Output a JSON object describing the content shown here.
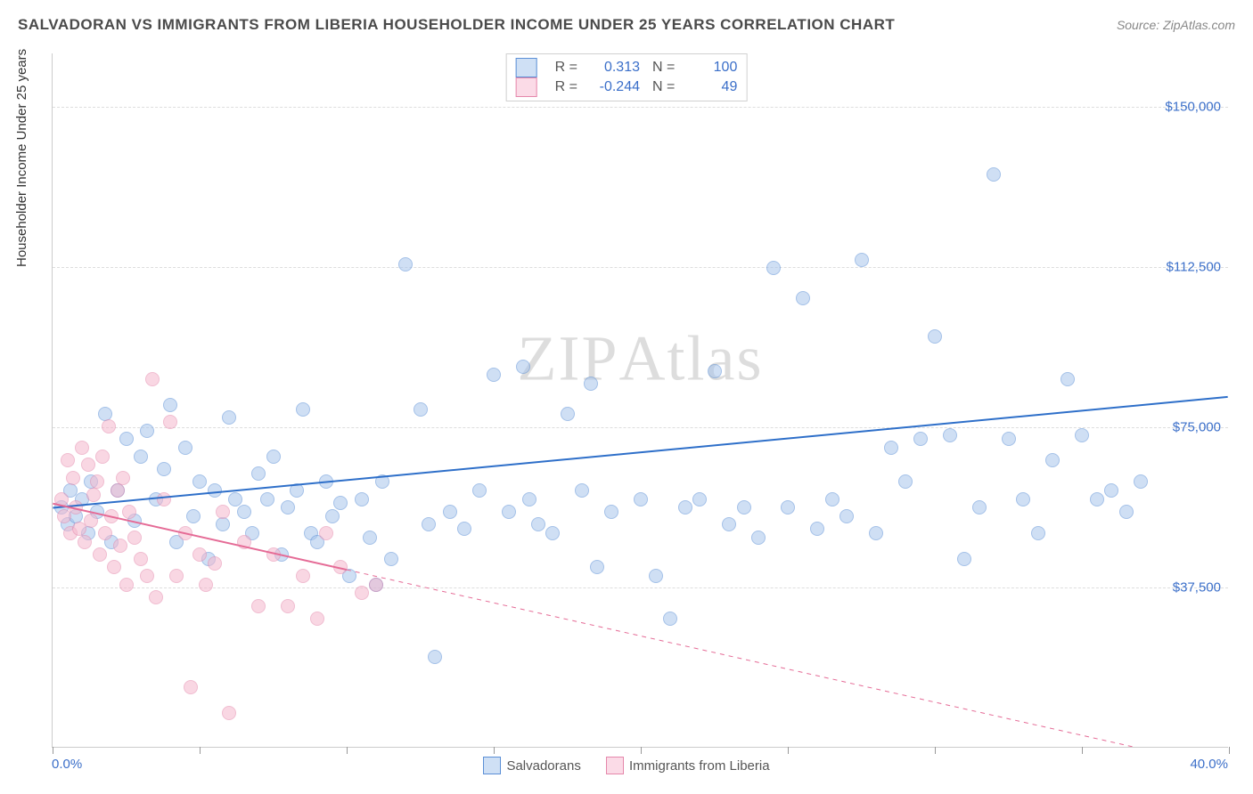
{
  "header": {
    "title": "SALVADORAN VS IMMIGRANTS FROM LIBERIA HOUSEHOLDER INCOME UNDER 25 YEARS CORRELATION CHART",
    "source_label": "Source: ",
    "source_name": "ZipAtlas.com"
  },
  "watermark": "ZIPAtlas",
  "chart": {
    "type": "scatter",
    "ylabel": "Householder Income Under 25 years",
    "xlim": [
      0,
      40
    ],
    "ylim": [
      0,
      162500
    ],
    "xaxis_min_label": "0.0%",
    "xaxis_max_label": "40.0%",
    "xtick_positions": [
      0,
      5,
      10,
      15,
      20,
      25,
      30,
      35,
      40
    ],
    "ytick_positions": [
      37500,
      75000,
      112500,
      150000
    ],
    "ytick_labels": [
      "$37,500",
      "$75,000",
      "$112,500",
      "$150,000"
    ],
    "grid_color": "#dddddd",
    "background_color": "#ffffff",
    "axis_color": "#cccccc",
    "tick_label_color": "#3b6fc9",
    "label_fontsize": 15,
    "title_fontsize": 17,
    "series": [
      {
        "name": "Salvadorans",
        "fill_color": "#a8c5ec",
        "fill_opacity": 0.55,
        "stroke_color": "#5b8fd6",
        "swatch_fill": "#cfe0f5",
        "swatch_border": "#5b8fd6",
        "line_color": "#2e6fc9",
        "line_width": 2,
        "marker_radius": 8,
        "r_value": "0.313",
        "n_value": "100",
        "trend": {
          "x1": 0,
          "y1": 56000,
          "x2": 40,
          "y2": 82000
        },
        "points": [
          [
            0.3,
            56000
          ],
          [
            0.5,
            52000
          ],
          [
            0.6,
            60000
          ],
          [
            0.8,
            54000
          ],
          [
            1.0,
            58000
          ],
          [
            1.2,
            50000
          ],
          [
            1.3,
            62000
          ],
          [
            1.5,
            55000
          ],
          [
            1.8,
            78000
          ],
          [
            2.0,
            48000
          ],
          [
            2.2,
            60000
          ],
          [
            2.5,
            72000
          ],
          [
            2.8,
            53000
          ],
          [
            3.0,
            68000
          ],
          [
            3.2,
            74000
          ],
          [
            3.5,
            58000
          ],
          [
            3.8,
            65000
          ],
          [
            4.0,
            80000
          ],
          [
            4.2,
            48000
          ],
          [
            4.5,
            70000
          ],
          [
            4.8,
            54000
          ],
          [
            5.0,
            62000
          ],
          [
            5.3,
            44000
          ],
          [
            5.5,
            60000
          ],
          [
            5.8,
            52000
          ],
          [
            6.0,
            77000
          ],
          [
            6.2,
            58000
          ],
          [
            6.5,
            55000
          ],
          [
            6.8,
            50000
          ],
          [
            7.0,
            64000
          ],
          [
            7.3,
            58000
          ],
          [
            7.5,
            68000
          ],
          [
            7.8,
            45000
          ],
          [
            8.0,
            56000
          ],
          [
            8.3,
            60000
          ],
          [
            8.5,
            79000
          ],
          [
            8.8,
            50000
          ],
          [
            9.0,
            48000
          ],
          [
            9.3,
            62000
          ],
          [
            9.5,
            54000
          ],
          [
            9.8,
            57000
          ],
          [
            10.1,
            40000
          ],
          [
            10.5,
            58000
          ],
          [
            10.8,
            49000
          ],
          [
            11.0,
            38000
          ],
          [
            11.2,
            62000
          ],
          [
            11.5,
            44000
          ],
          [
            12.0,
            113000
          ],
          [
            12.5,
            79000
          ],
          [
            12.8,
            52000
          ],
          [
            13.0,
            21000
          ],
          [
            13.5,
            55000
          ],
          [
            14.0,
            51000
          ],
          [
            14.5,
            60000
          ],
          [
            15.0,
            87000
          ],
          [
            15.5,
            55000
          ],
          [
            16.0,
            89000
          ],
          [
            16.2,
            58000
          ],
          [
            16.5,
            52000
          ],
          [
            17.0,
            50000
          ],
          [
            17.5,
            78000
          ],
          [
            18.0,
            60000
          ],
          [
            18.3,
            85000
          ],
          [
            18.5,
            42000
          ],
          [
            19.0,
            55000
          ],
          [
            20.0,
            58000
          ],
          [
            20.5,
            40000
          ],
          [
            21.0,
            30000
          ],
          [
            21.5,
            56000
          ],
          [
            22.0,
            58000
          ],
          [
            22.5,
            88000
          ],
          [
            23.0,
            52000
          ],
          [
            23.5,
            56000
          ],
          [
            24.0,
            49000
          ],
          [
            24.5,
            112000
          ],
          [
            25.0,
            56000
          ],
          [
            25.5,
            105000
          ],
          [
            26.0,
            51000
          ],
          [
            26.5,
            58000
          ],
          [
            27.0,
            54000
          ],
          [
            27.5,
            114000
          ],
          [
            28.0,
            50000
          ],
          [
            28.5,
            70000
          ],
          [
            29.0,
            62000
          ],
          [
            29.5,
            72000
          ],
          [
            30.0,
            96000
          ],
          [
            30.5,
            73000
          ],
          [
            31.0,
            44000
          ],
          [
            31.5,
            56000
          ],
          [
            32.0,
            134000
          ],
          [
            32.5,
            72000
          ],
          [
            33.0,
            58000
          ],
          [
            33.5,
            50000
          ],
          [
            34.0,
            67000
          ],
          [
            34.5,
            86000
          ],
          [
            35.0,
            73000
          ],
          [
            35.5,
            58000
          ],
          [
            36.0,
            60000
          ],
          [
            36.5,
            55000
          ],
          [
            37.0,
            62000
          ]
        ]
      },
      {
        "name": "Immigrants from Liberia",
        "fill_color": "#f5b8cd",
        "fill_opacity": 0.55,
        "stroke_color": "#e587ab",
        "swatch_fill": "#fbdbe7",
        "swatch_border": "#e587ab",
        "line_color": "#e56b96",
        "line_width": 2,
        "marker_radius": 8,
        "r_value": "-0.244",
        "n_value": "49",
        "trend": {
          "x1": 0,
          "y1": 57000,
          "x2": 40,
          "y2": -5000
        },
        "trend_solid_until_x": 10,
        "points": [
          [
            0.3,
            58000
          ],
          [
            0.4,
            54000
          ],
          [
            0.5,
            67000
          ],
          [
            0.6,
            50000
          ],
          [
            0.7,
            63000
          ],
          [
            0.8,
            56000
          ],
          [
            0.9,
            51000
          ],
          [
            1.0,
            70000
          ],
          [
            1.1,
            48000
          ],
          [
            1.2,
            66000
          ],
          [
            1.3,
            53000
          ],
          [
            1.4,
            59000
          ],
          [
            1.5,
            62000
          ],
          [
            1.6,
            45000
          ],
          [
            1.7,
            68000
          ],
          [
            1.8,
            50000
          ],
          [
            1.9,
            75000
          ],
          [
            2.0,
            54000
          ],
          [
            2.1,
            42000
          ],
          [
            2.2,
            60000
          ],
          [
            2.3,
            47000
          ],
          [
            2.4,
            63000
          ],
          [
            2.5,
            38000
          ],
          [
            2.6,
            55000
          ],
          [
            2.8,
            49000
          ],
          [
            3.0,
            44000
          ],
          [
            3.2,
            40000
          ],
          [
            3.4,
            86000
          ],
          [
            3.5,
            35000
          ],
          [
            3.8,
            58000
          ],
          [
            4.0,
            76000
          ],
          [
            4.2,
            40000
          ],
          [
            4.5,
            50000
          ],
          [
            4.7,
            14000
          ],
          [
            5.0,
            45000
          ],
          [
            5.2,
            38000
          ],
          [
            5.5,
            43000
          ],
          [
            5.8,
            55000
          ],
          [
            6.0,
            8000
          ],
          [
            6.5,
            48000
          ],
          [
            7.0,
            33000
          ],
          [
            7.5,
            45000
          ],
          [
            8.0,
            33000
          ],
          [
            8.5,
            40000
          ],
          [
            9.0,
            30000
          ],
          [
            9.3,
            50000
          ],
          [
            9.8,
            42000
          ],
          [
            10.5,
            36000
          ],
          [
            11.0,
            38000
          ]
        ]
      }
    ]
  },
  "legend": {
    "series1_label": "Salvadorans",
    "series2_label": "Immigrants from Liberia"
  },
  "stats_labels": {
    "r": "R =",
    "n": "N ="
  }
}
